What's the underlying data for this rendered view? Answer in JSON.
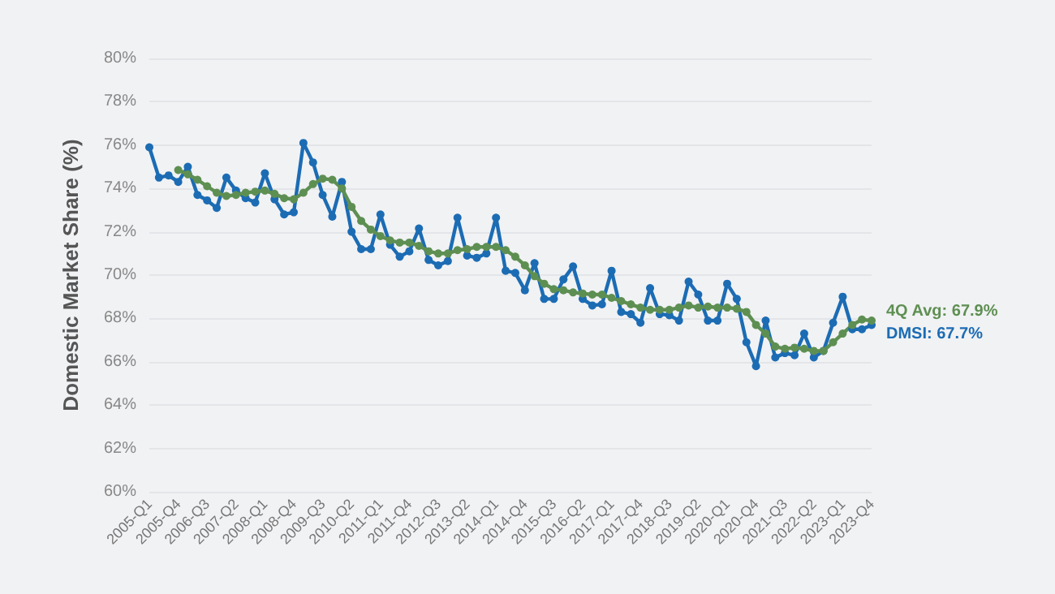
{
  "chart_data": {
    "type": "line",
    "ylabel": "Domestic Market Share (%)",
    "categories": [
      "2005-Q1",
      null,
      null,
      "2005-Q4",
      null,
      null,
      "2006-Q3",
      null,
      null,
      "2007-Q2",
      null,
      null,
      "2008-Q1",
      null,
      null,
      "2008-Q4",
      null,
      null,
      "2009-Q3",
      null,
      null,
      "2010-Q2",
      null,
      null,
      "2011-Q1",
      null,
      null,
      "2011-Q4",
      null,
      null,
      "2012-Q3",
      null,
      null,
      "2013-Q2",
      null,
      null,
      "2014-Q1",
      null,
      null,
      "2014-Q4",
      null,
      null,
      "2015-Q3",
      null,
      null,
      "2016-Q2",
      null,
      null,
      "2017-Q1",
      null,
      null,
      "2017-Q4",
      null,
      null,
      "2018-Q3",
      null,
      null,
      "2019-Q2",
      null,
      null,
      "2020-Q1",
      null,
      null,
      "2020-Q4",
      null,
      null,
      "2021-Q3",
      null,
      null,
      "2022-Q2",
      null,
      null,
      "2023-Q1",
      null,
      null,
      "2023-Q4"
    ],
    "series": [
      {
        "color": "#1c6cb4",
        "values": [
          75.9,
          74.5,
          74.6,
          74.3,
          75.0,
          73.7,
          73.45,
          73.1,
          74.5,
          73.9,
          73.55,
          73.35,
          74.7,
          73.5,
          72.8,
          72.9,
          76.1,
          75.2,
          73.7,
          72.7,
          74.3,
          72.0,
          71.2,
          71.2,
          72.8,
          71.4,
          70.85,
          71.1,
          72.15,
          70.7,
          70.45,
          70.65,
          72.65,
          70.9,
          70.8,
          71.0,
          72.65,
          70.2,
          70.1,
          69.3,
          70.55,
          68.9,
          68.9,
          69.8,
          70.4,
          68.9,
          68.6,
          68.65,
          70.2,
          68.3,
          68.2,
          67.8,
          69.4,
          68.2,
          68.15,
          67.9,
          69.7,
          69.1,
          67.9,
          67.9,
          69.6,
          68.9,
          66.9,
          65.8,
          67.9,
          66.2,
          66.4,
          66.3,
          67.3,
          66.2,
          66.5,
          67.8,
          69.0,
          67.5,
          67.5,
          67.7
        ]
      },
      {
        "color": "#5e8f52",
        "values": [
          null,
          null,
          null,
          74.85,
          74.65,
          74.4,
          74.1,
          73.8,
          73.65,
          73.7,
          73.8,
          73.85,
          73.9,
          73.75,
          73.55,
          73.5,
          73.8,
          74.2,
          74.45,
          74.4,
          74.0,
          73.15,
          72.5,
          72.1,
          71.8,
          71.6,
          71.5,
          71.5,
          71.35,
          71.1,
          71.0,
          71.0,
          71.15,
          71.2,
          71.3,
          71.3,
          71.3,
          71.15,
          70.85,
          70.45,
          69.95,
          69.6,
          69.35,
          69.3,
          69.2,
          69.15,
          69.1,
          69.1,
          68.95,
          68.8,
          68.65,
          68.5,
          68.4,
          68.4,
          68.4,
          68.5,
          68.6,
          68.5,
          68.55,
          68.5,
          68.5,
          68.45,
          68.3,
          67.7,
          67.3,
          66.7,
          66.6,
          66.65,
          66.6,
          66.5,
          66.5,
          66.9,
          67.3,
          67.7,
          67.95,
          67.9
        ]
      }
    ],
    "annotations": [
      {
        "text": "DMSI: 67.7%",
        "x": "2023-Q4",
        "y": 67.7
      },
      {
        "text": "4Q Avg: 67.9%",
        "x": "2023-Q4",
        "y": 67.9
      }
    ],
    "ylim": [
      60,
      80
    ],
    "yticks": [
      {
        "value": 60,
        "label": "60%"
      },
      {
        "value": 62,
        "label": "62%"
      },
      {
        "value": 64,
        "label": "64%"
      },
      {
        "value": 66,
        "label": "66%"
      },
      {
        "value": 68,
        "label": "68%"
      },
      {
        "value": 70,
        "label": "70%"
      },
      {
        "value": 72,
        "label": "72%"
      },
      {
        "value": 74,
        "label": "74%"
      },
      {
        "value": 76,
        "label": "76%"
      },
      {
        "value": 78,
        "label": "78%"
      },
      {
        "value": 80,
        "label": "80%"
      }
    ],
    "grid": "y",
    "marker": "circle",
    "line_style": "solid"
  }
}
